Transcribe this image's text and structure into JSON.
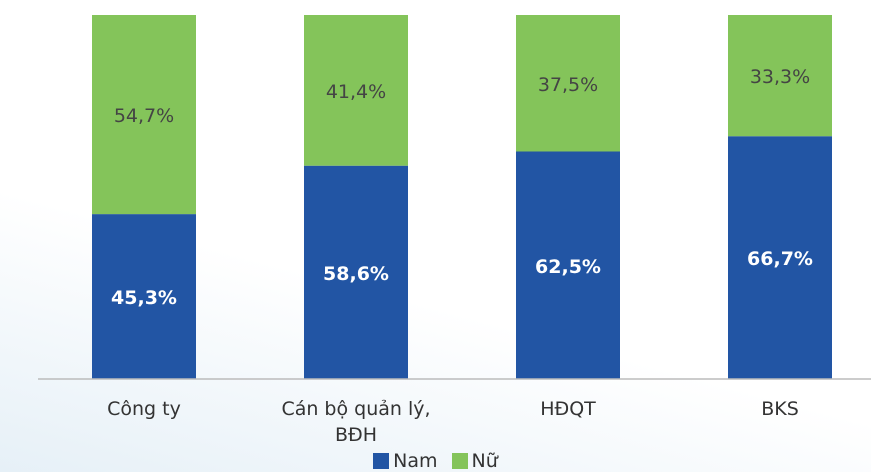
{
  "chart_data": {
    "type": "bar",
    "stacked": true,
    "categories": [
      "Công ty",
      "Cán bộ quản lý, BĐH",
      "HĐQT",
      "BKS"
    ],
    "series": [
      {
        "name": "Nam",
        "color": "#2255a4",
        "values": [
          45.3,
          58.6,
          62.5,
          66.7
        ],
        "value_labels": [
          "45,3%",
          "58,6%",
          "62,5%",
          "66,7%"
        ]
      },
      {
        "name": "Nữ",
        "color": "#84c45a",
        "values": [
          54.7,
          41.4,
          37.5,
          33.3
        ],
        "value_labels": [
          "54,7%",
          "41,4%",
          "37,5%",
          "33,3%"
        ]
      }
    ],
    "ylim": [
      0,
      100
    ],
    "legend": "bottom"
  }
}
